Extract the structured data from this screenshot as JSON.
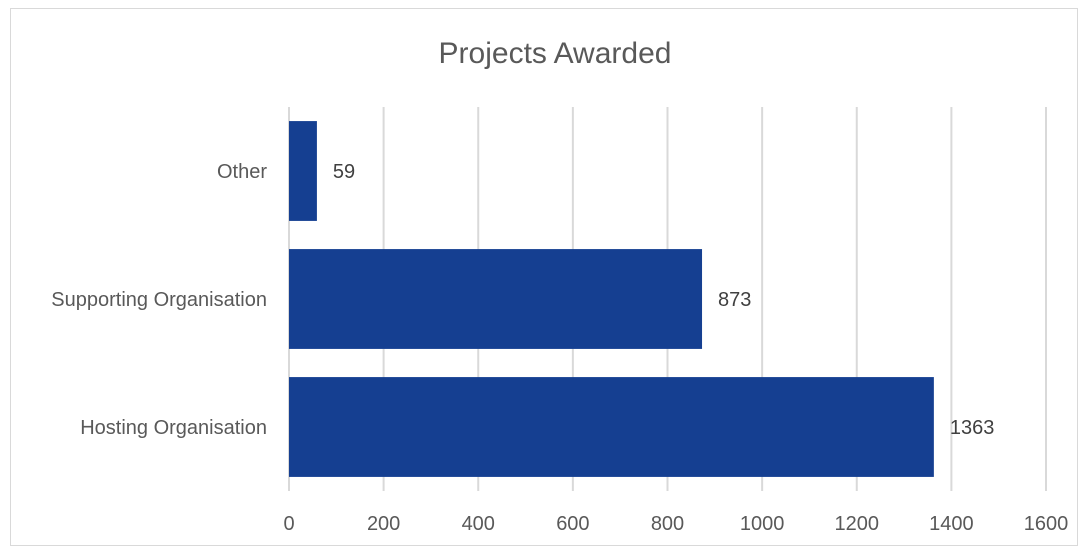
{
  "chart_data": {
    "type": "bar",
    "orientation": "horizontal",
    "title": "Projects Awarded",
    "xlabel": "",
    "ylabel": "",
    "categories": [
      "Other",
      "Supporting Organisation",
      "Hosting Organisation"
    ],
    "values": [
      59,
      873,
      1363
    ],
    "data_labels": [
      "59",
      "873",
      "1363"
    ],
    "xlim": [
      0,
      1600
    ],
    "xticks": [
      0,
      200,
      400,
      600,
      800,
      1000,
      1200,
      1400,
      1600
    ],
    "xtick_labels": [
      "0",
      "200",
      "400",
      "600",
      "800",
      "1000",
      "1200",
      "1400",
      "1600"
    ],
    "grid": "vertical",
    "legend": "none",
    "colors": {
      "bar": "#153f91",
      "grid": "#d9d9d9",
      "text": "#595959",
      "data_label": "#404040"
    }
  }
}
